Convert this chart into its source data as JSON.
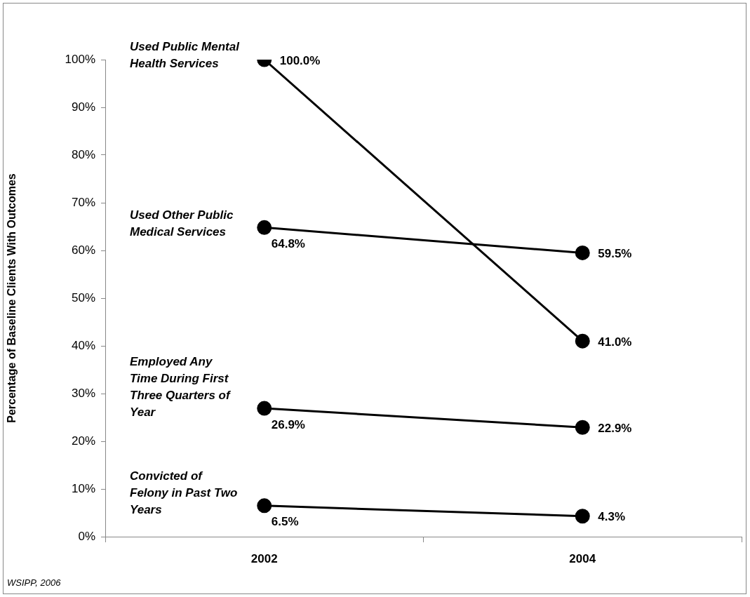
{
  "chart_data": {
    "type": "line",
    "ylabel": "Percentage of Baseline Clients With Outcomes",
    "categories": [
      "2002",
      "2004"
    ],
    "series": [
      {
        "name": "Used Public Mental Health Services",
        "color": "#000000",
        "values": [
          100.0,
          41.0
        ],
        "value_labels": [
          "100.0%",
          "41.0%"
        ]
      },
      {
        "name": "Used Other Public Medical Services",
        "color": "#000000",
        "values": [
          64.8,
          59.5
        ],
        "value_labels": [
          "64.8%",
          "59.5%"
        ]
      },
      {
        "name": "Employed Any Time During First Three Quarters of Year",
        "color": "#000000",
        "values": [
          26.9,
          22.9
        ],
        "value_labels": [
          "26.9%",
          "22.9%"
        ]
      },
      {
        "name": "Convicted of Felony in Past Two Years",
        "color": "#000000",
        "values": [
          6.5,
          4.3
        ],
        "value_labels": [
          "6.5%",
          "4.3%"
        ]
      }
    ],
    "ylim": [
      0,
      100
    ],
    "yticks": [
      {
        "value": 0,
        "label": "0%"
      },
      {
        "value": 10,
        "label": "10%"
      },
      {
        "value": 20,
        "label": "20%"
      },
      {
        "value": 30,
        "label": "30%"
      },
      {
        "value": 40,
        "label": "40%"
      },
      {
        "value": 50,
        "label": "50%"
      },
      {
        "value": 60,
        "label": "60%"
      },
      {
        "value": 70,
        "label": "70%"
      },
      {
        "value": 80,
        "label": "80%"
      },
      {
        "value": 90,
        "label": "90%"
      },
      {
        "value": 100,
        "label": "100%"
      }
    ],
    "grid": false,
    "legend": false,
    "marker": "circle",
    "line_style": "solid",
    "annotations": [
      "WSIPP, 2006"
    ]
  }
}
